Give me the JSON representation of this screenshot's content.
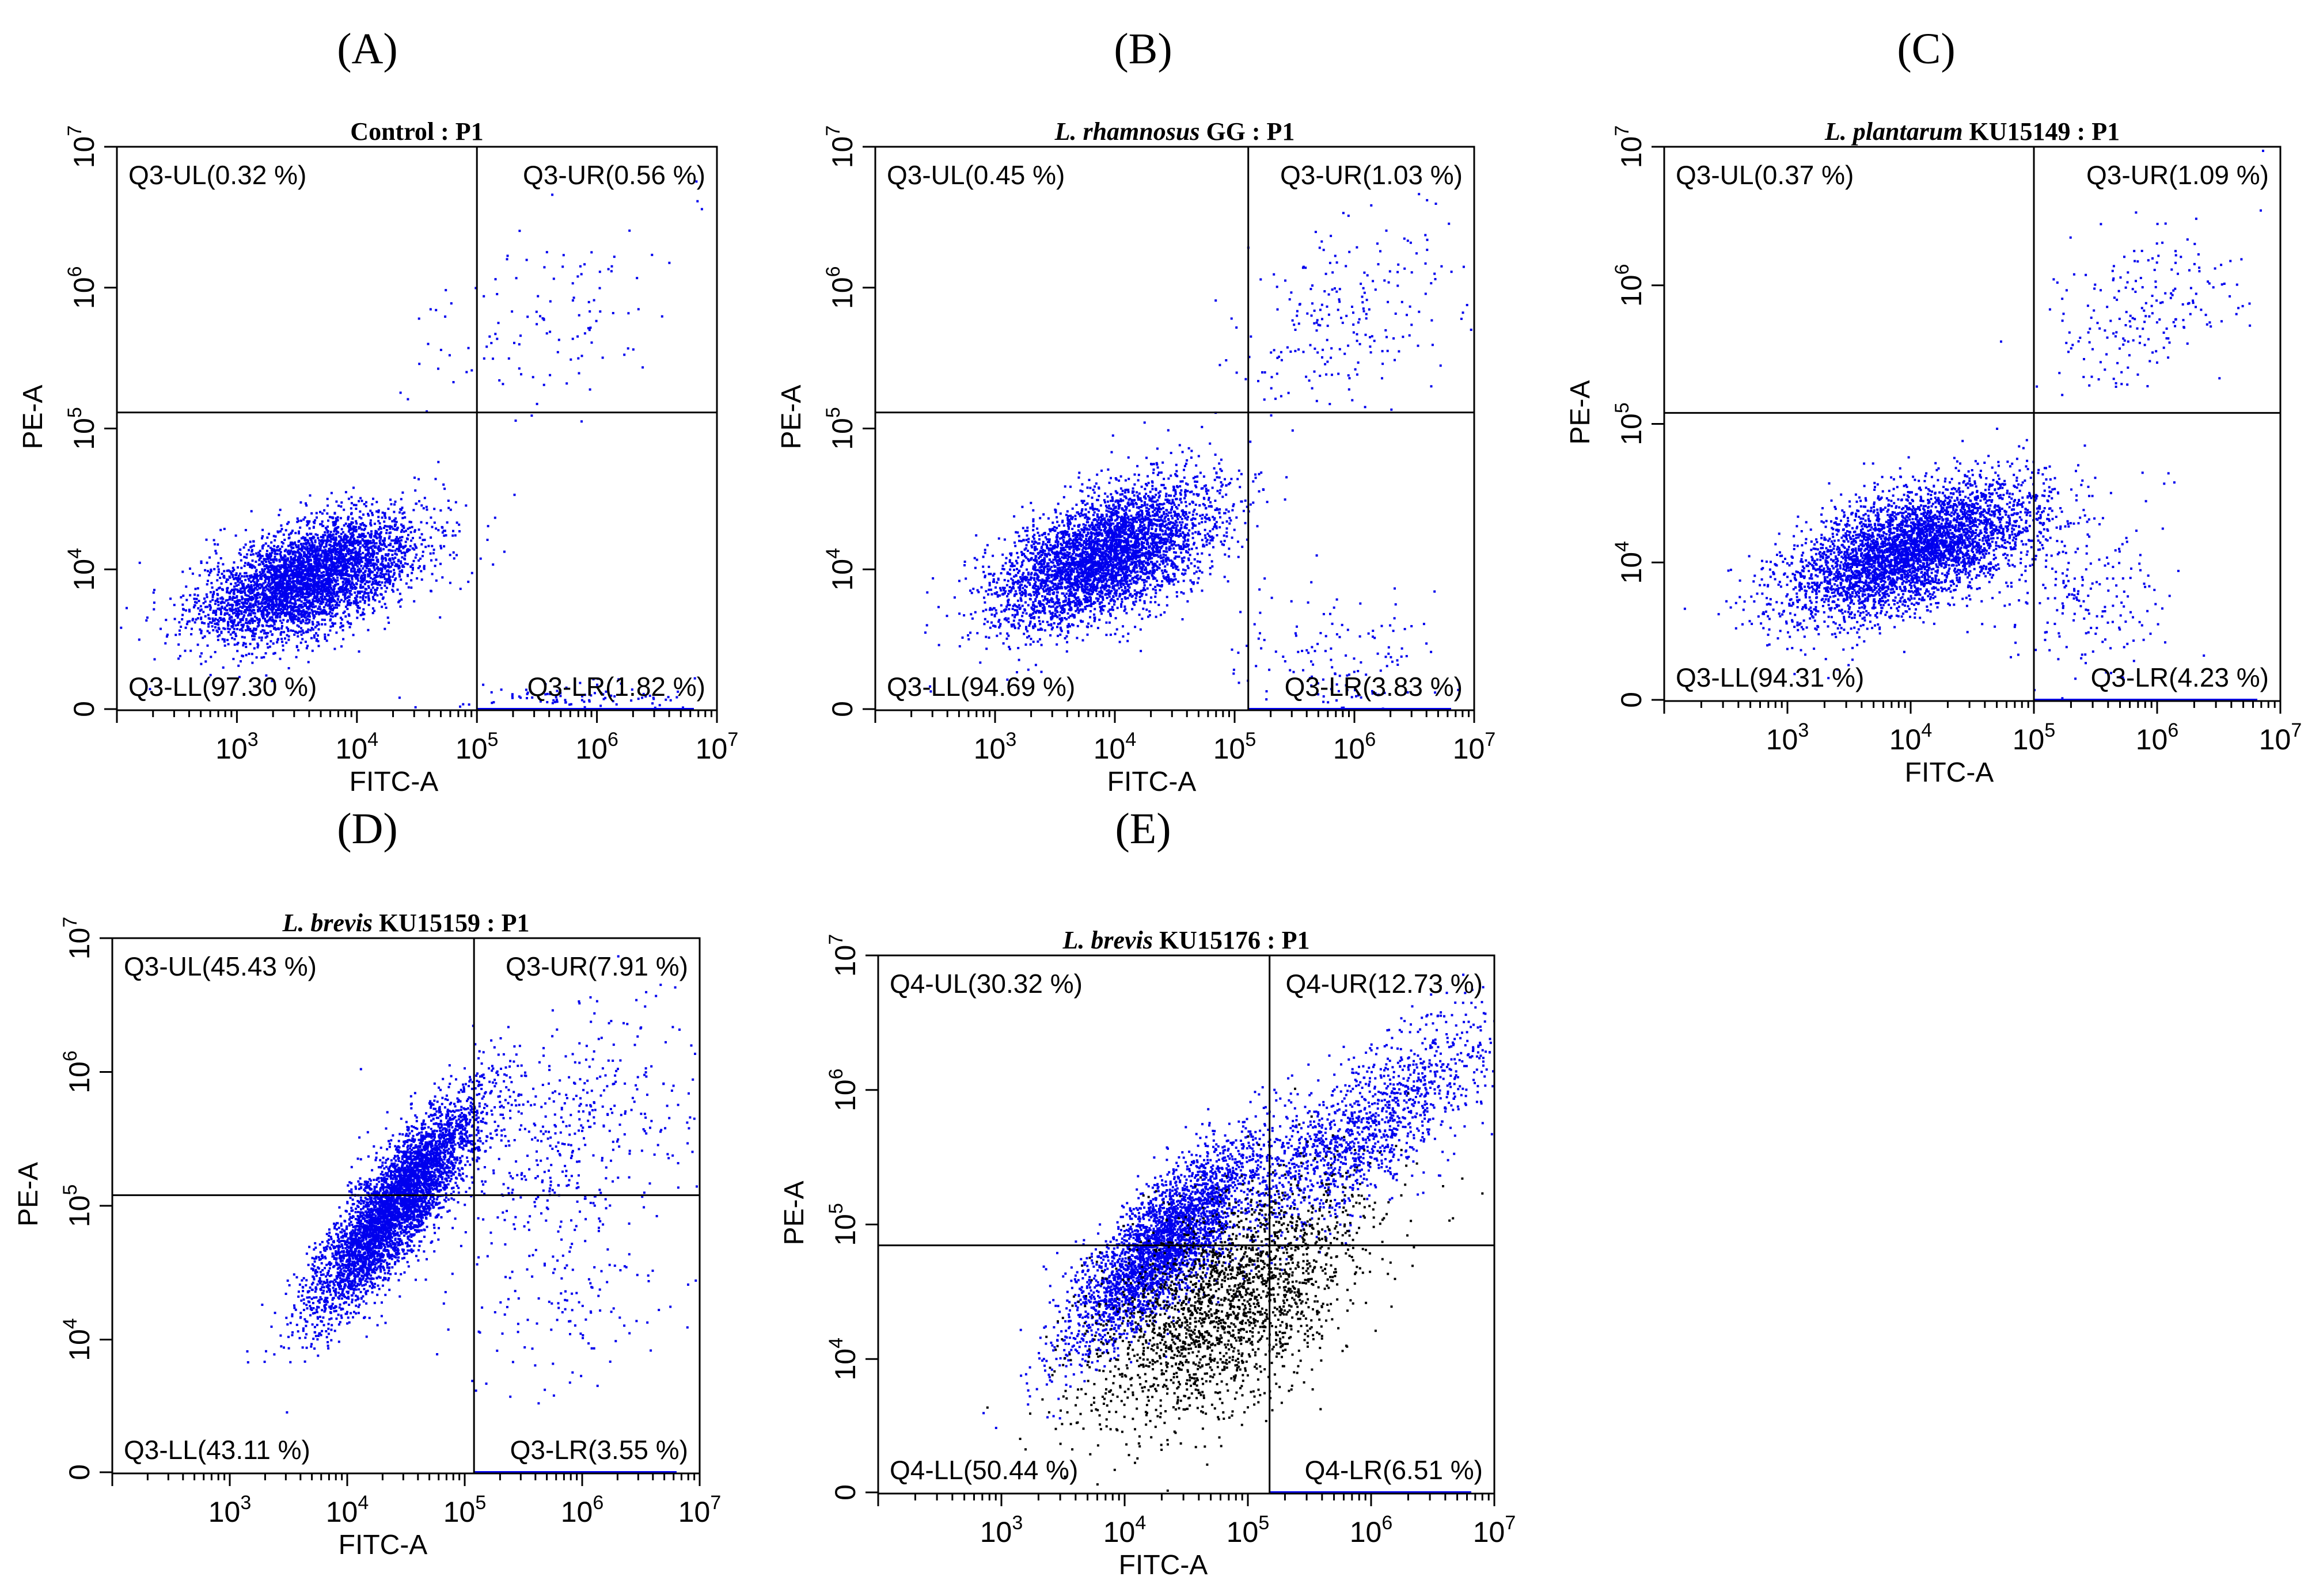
{
  "figure": {
    "colors": {
      "blue": "#0000ee",
      "black": "#000000",
      "axis": "#000000"
    }
  },
  "chart_data": [
    {
      "panel": "(A)",
      "type": "scatter",
      "title": "Control : P1",
      "title_italic": "",
      "title_rest": "Control : P1",
      "xlabel": "FITC-A",
      "ylabel": "PE-A",
      "x_scale": "log",
      "y_scale": "log",
      "xlim": [
        100,
        10000000
      ],
      "ylim": [
        1000,
        10000000
      ],
      "x_ticks": [
        "3",
        "4",
        "5",
        "6",
        "7"
      ],
      "y_ticks": [
        "0",
        "4",
        "5",
        "6",
        "7"
      ],
      "gate": {
        "x": 100000,
        "y": 130000
      },
      "quadrants": {
        "UL": "Q3-UL(0.32 %)",
        "UR": "Q3-UR(0.56 %)",
        "LL": "Q3-LL(97.30 %)",
        "LR": "Q3-LR(1.82 %)"
      },
      "quadrant_percent": {
        "UL": 0.32,
        "UR": 0.56,
        "LL": 97.3,
        "LR": 1.82
      },
      "populations": [
        {
          "color": "blue",
          "count": 4200,
          "center_log": [
            3.6,
            3.95
          ],
          "spread_log": [
            0.45,
            0.22
          ],
          "corr": 0.55
        },
        {
          "color": "blue",
          "count": 120,
          "center_log": [
            5.6,
            5.75
          ],
          "spread_log": [
            0.5,
            0.35
          ],
          "corr": 0.4
        },
        {
          "color": "blue",
          "count": 90,
          "center_log": [
            5.8,
            3.1
          ],
          "spread_log": [
            0.5,
            0.05
          ],
          "corr": 0
        }
      ]
    },
    {
      "panel": "(B)",
      "type": "scatter",
      "title": "L. rhamnosus GG : P1",
      "title_italic": "L. rhamnosus",
      "title_rest": "GG : P1",
      "xlabel": "FITC-A",
      "ylabel": "PE-A",
      "x_scale": "log",
      "y_scale": "log",
      "xlim": [
        100,
        10000000
      ],
      "ylim": [
        1000,
        10000000
      ],
      "x_ticks": [
        "3",
        "4",
        "5",
        "6",
        "7"
      ],
      "y_ticks": [
        "0",
        "4",
        "5",
        "6",
        "7"
      ],
      "gate": {
        "x": 130000,
        "y": 130000
      },
      "quadrants": {
        "UL": "Q3-UL(0.45 %)",
        "UR": "Q3-UR(1.03 %)",
        "LL": "Q3-LL(94.69 %)",
        "LR": "Q3-LR(3.83 %)"
      },
      "quadrant_percent": {
        "UL": 0.45,
        "UR": 1.03,
        "LL": 94.69,
        "LR": 3.83
      },
      "populations": [
        {
          "color": "blue",
          "count": 4200,
          "center_log": [
            3.9,
            4.1
          ],
          "spread_log": [
            0.45,
            0.25
          ],
          "corr": 0.55
        },
        {
          "color": "blue",
          "count": 220,
          "center_log": [
            5.9,
            5.8
          ],
          "spread_log": [
            0.45,
            0.35
          ],
          "corr": 0.3
        },
        {
          "color": "blue",
          "count": 150,
          "center_log": [
            5.8,
            3.3
          ],
          "spread_log": [
            0.4,
            0.3
          ],
          "corr": 0
        }
      ]
    },
    {
      "panel": "(C)",
      "type": "scatter",
      "title": "L. plantarum KU15149 : P1",
      "title_italic": "L. plantarum",
      "title_rest": "KU15149 : P1",
      "xlabel": "FITC-A",
      "ylabel": "PE-A",
      "x_scale": "log",
      "y_scale": "log",
      "xlim": [
        100,
        10000000
      ],
      "ylim": [
        1000,
        10000000
      ],
      "x_ticks": [
        "3",
        "4",
        "5",
        "6",
        "7"
      ],
      "y_ticks": [
        "0",
        "4",
        "5",
        "6",
        "7"
      ],
      "gate": {
        "x": 100000,
        "y": 120000
      },
      "quadrants": {
        "UL": "Q3-UL(0.37 %)",
        "UR": "Q3-UR(1.09 %)",
        "LL": "Q3-LL(94.31 %)",
        "LR": "Q3-LR(4.23 %)"
      },
      "quadrant_percent": {
        "UL": 0.37,
        "UR": 1.09,
        "LL": 94.31,
        "LR": 4.23
      },
      "populations": [
        {
          "color": "blue",
          "count": 4200,
          "center_log": [
            4.0,
            4.1
          ],
          "spread_log": [
            0.5,
            0.25
          ],
          "corr": 0.55
        },
        {
          "color": "blue",
          "count": 200,
          "center_log": [
            5.9,
            5.8
          ],
          "spread_log": [
            0.4,
            0.3
          ],
          "corr": 0.3
        },
        {
          "color": "blue",
          "count": 220,
          "center_log": [
            5.4,
            3.8
          ],
          "spread_log": [
            0.35,
            0.35
          ],
          "corr": 0
        }
      ]
    },
    {
      "panel": "(D)",
      "type": "scatter",
      "title": "L. brevis KU15159 : P1",
      "title_italic": "L. brevis",
      "title_rest": "KU15159 : P1",
      "xlabel": "FITC-A",
      "ylabel": "PE-A",
      "x_scale": "log",
      "y_scale": "log",
      "xlim": [
        100,
        10000000
      ],
      "ylim": [
        1000,
        10000000
      ],
      "x_ticks": [
        "3",
        "4",
        "5",
        "6",
        "7"
      ],
      "y_ticks": [
        "0",
        "4",
        "5",
        "6",
        "7"
      ],
      "gate": {
        "x": 120000,
        "y": 120000
      },
      "quadrants": {
        "UL": "Q3-UL(45.43 %)",
        "UR": "Q3-UR(7.91 %)",
        "LL": "Q3-LL(43.11 %)",
        "LR": "Q3-LR(3.55 %)"
      },
      "quadrant_percent": {
        "UL": 45.43,
        "UR": 7.91,
        "LL": 43.11,
        "LR": 3.55
      },
      "populations": [
        {
          "color": "blue",
          "count": 4600,
          "center_log": [
            4.4,
            5.0
          ],
          "spread_log": [
            0.35,
            0.4
          ],
          "corr": 0.85
        },
        {
          "color": "blue",
          "count": 420,
          "center_log": [
            5.9,
            5.6
          ],
          "spread_log": [
            0.55,
            0.45
          ],
          "corr": 0.35
        },
        {
          "color": "blue",
          "count": 160,
          "center_log": [
            5.8,
            4.4
          ],
          "spread_log": [
            0.5,
            0.4
          ],
          "corr": 0
        }
      ]
    },
    {
      "panel": "(E)",
      "type": "scatter",
      "title": "L. brevis KU15176 : P1",
      "title_italic": "L. brevis",
      "title_rest": "KU15176 : P1",
      "xlabel": "FITC-A",
      "ylabel": "PE-A",
      "x_scale": "log",
      "y_scale": "log",
      "xlim": [
        100,
        10000000
      ],
      "ylim": [
        1000,
        10000000
      ],
      "x_ticks": [
        "3",
        "4",
        "5",
        "6",
        "7"
      ],
      "y_ticks": [
        "0",
        "4",
        "5",
        "6",
        "7"
      ],
      "gate": {
        "x": 150000,
        "y": 70000
      },
      "quadrants": {
        "UL": "Q4-UL(30.32 %)",
        "UR": "Q4-UR(12.73 %)",
        "LL": "Q4-LL(50.44 %)",
        "LR": "Q4-LR(6.51 %)"
      },
      "quadrant_percent": {
        "UL": 30.32,
        "UR": 12.73,
        "LL": 50.44,
        "LR": 6.51
      },
      "populations": [
        {
          "color": "blue",
          "count": 3200,
          "center_log": [
            4.3,
            4.85
          ],
          "spread_log": [
            0.38,
            0.38
          ],
          "corr": 0.8
        },
        {
          "color": "blue",
          "count": 1500,
          "center_log": [
            5.9,
            5.7
          ],
          "spread_log": [
            0.6,
            0.45
          ],
          "corr": 0.8
        },
        {
          "color": "black",
          "count": 2200,
          "center_log": [
            4.8,
            4.4
          ],
          "spread_log": [
            0.55,
            0.45
          ],
          "corr": 0.55
        }
      ]
    }
  ]
}
